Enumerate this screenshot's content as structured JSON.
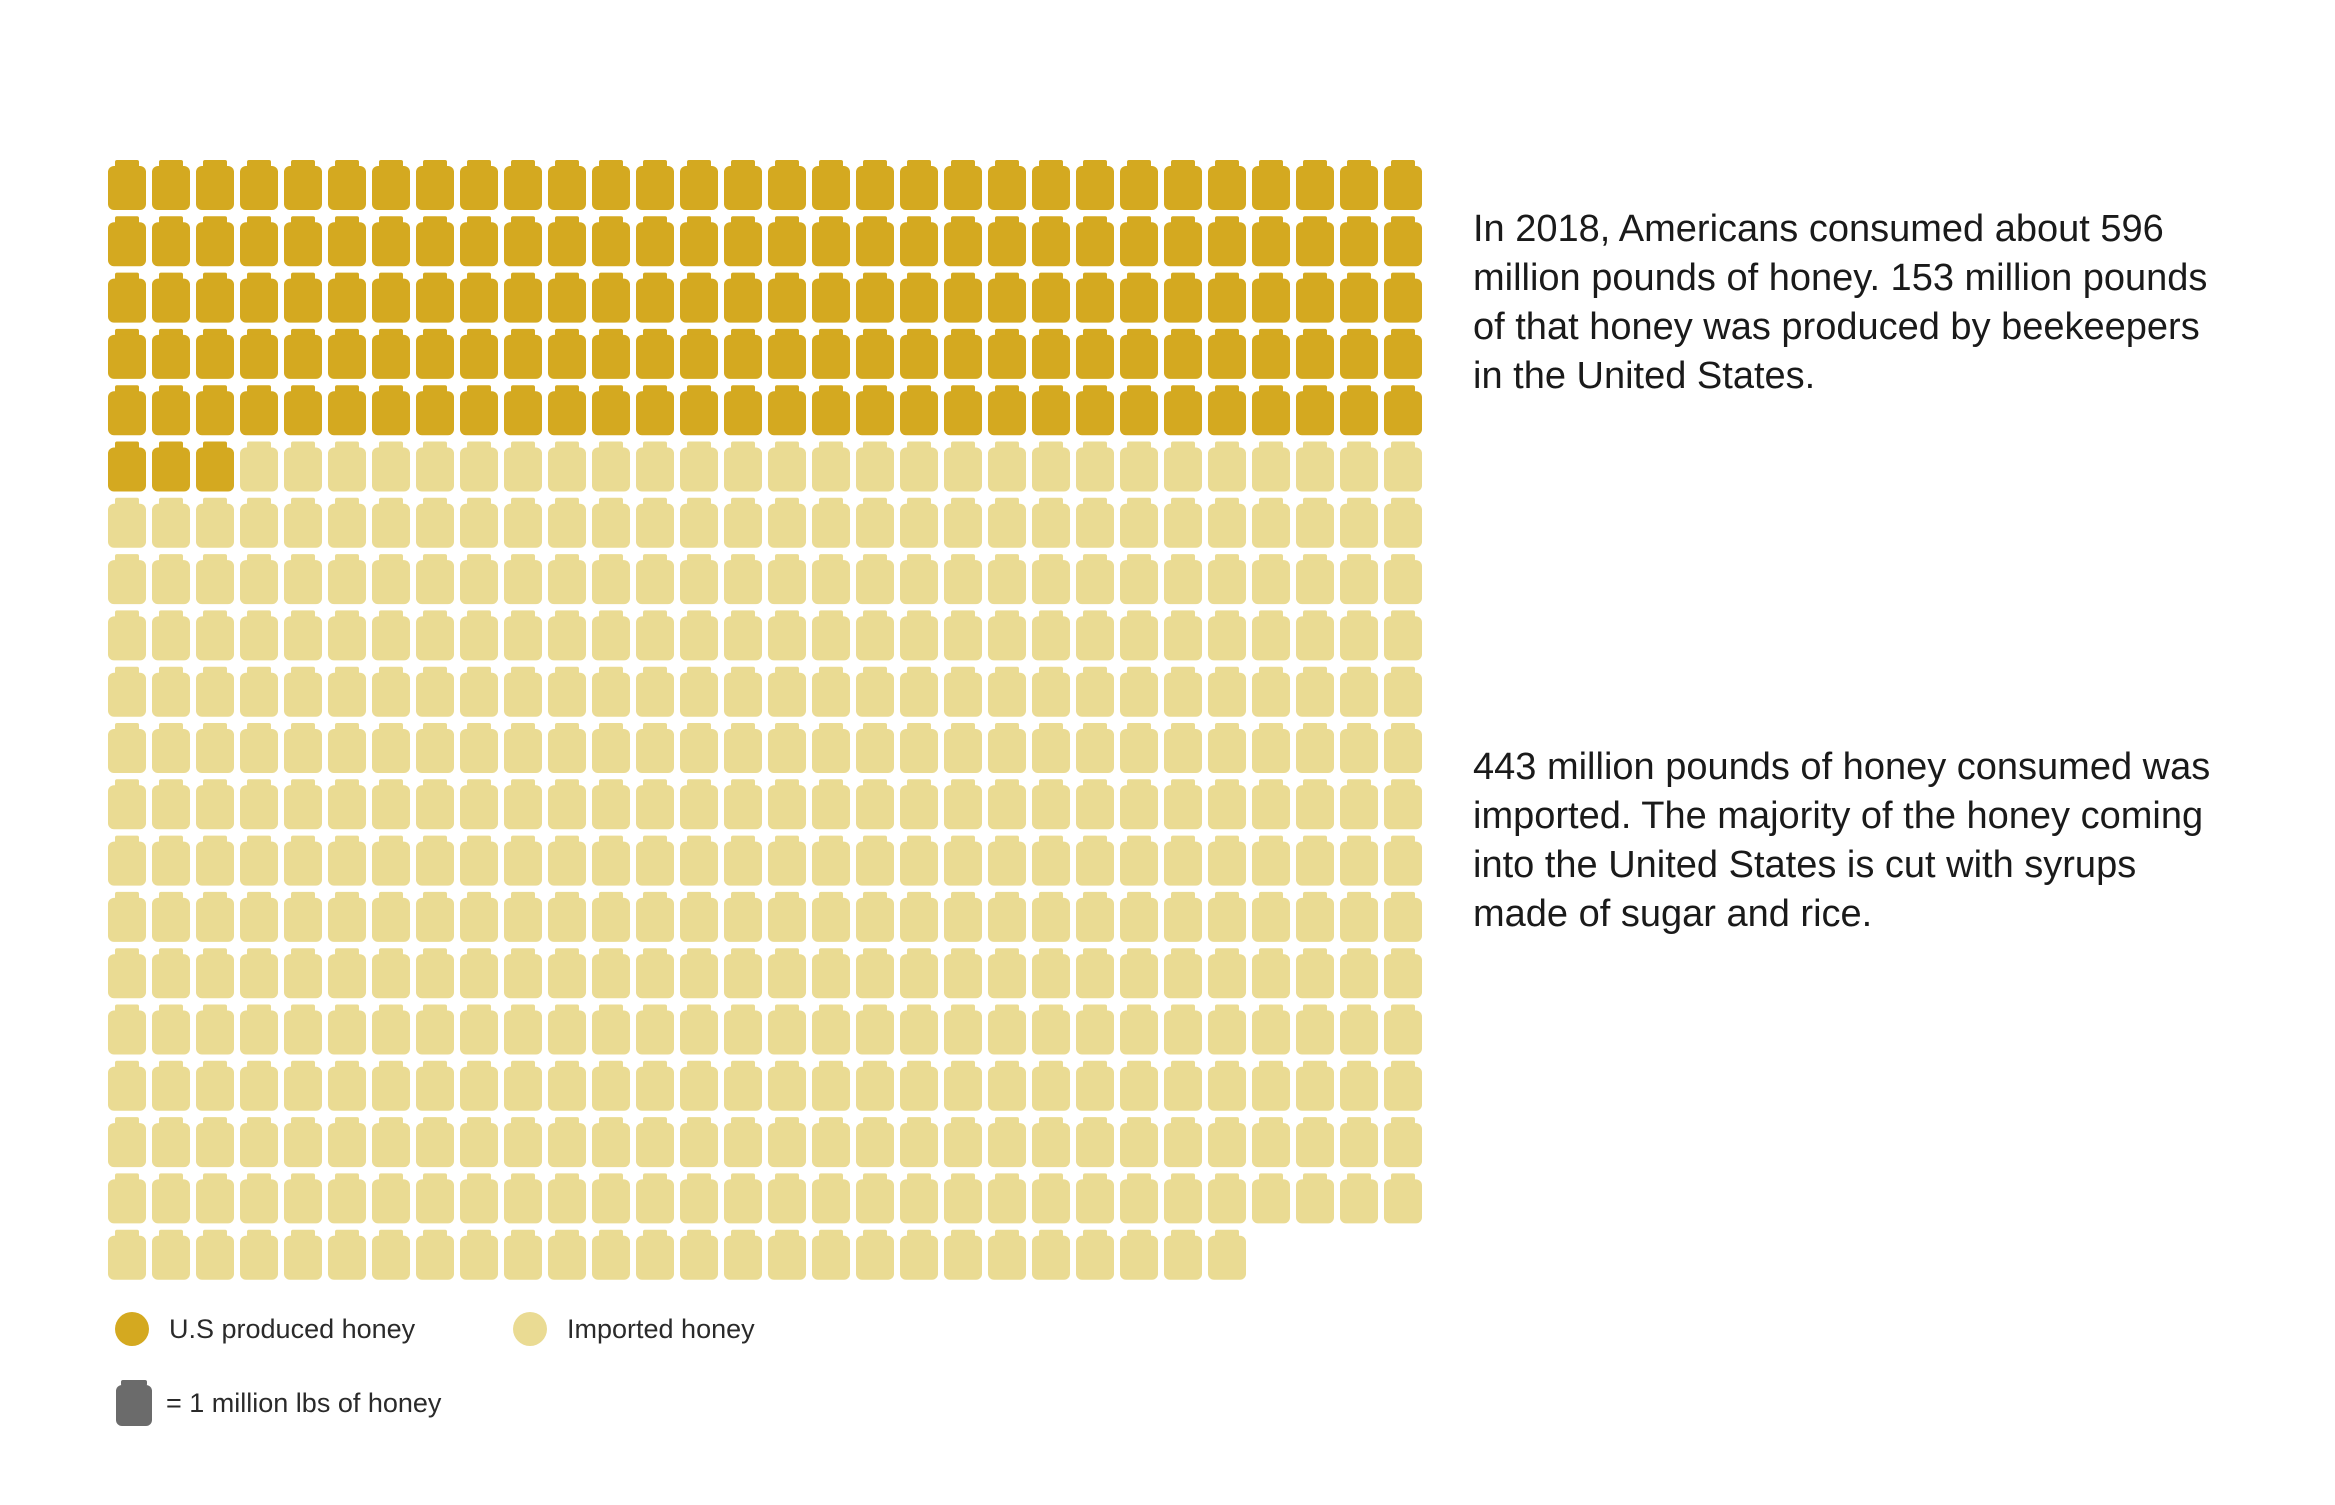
{
  "chart_data": {
    "type": "waffle",
    "title": "",
    "total_million_lbs": 596,
    "series": [
      {
        "name": "U.S produced honey",
        "value": 153,
        "color": "#D4A920"
      },
      {
        "name": "Imported honey",
        "value": 443,
        "color": "#EADB93"
      }
    ],
    "grid_columns": 30,
    "unit": "1 million lbs of honey",
    "unit_icon": "honey-jar-icon"
  },
  "text": {
    "paragraph_1": "In 2018, Americans consumed about 596 million pounds of honey. 153 million pounds of that honey was produced by beekeepers in the United States.",
    "paragraph_2": "443 million pounds of honey consumed was imported. The majority of the honey coming into the United States is cut with syrups made of sugar and rice."
  },
  "legend": {
    "us_label": "U.S produced honey",
    "imported_label": "Imported honey",
    "unit_label": "= 1 million lbs of honey",
    "unit_color": "#6B6B6B"
  }
}
